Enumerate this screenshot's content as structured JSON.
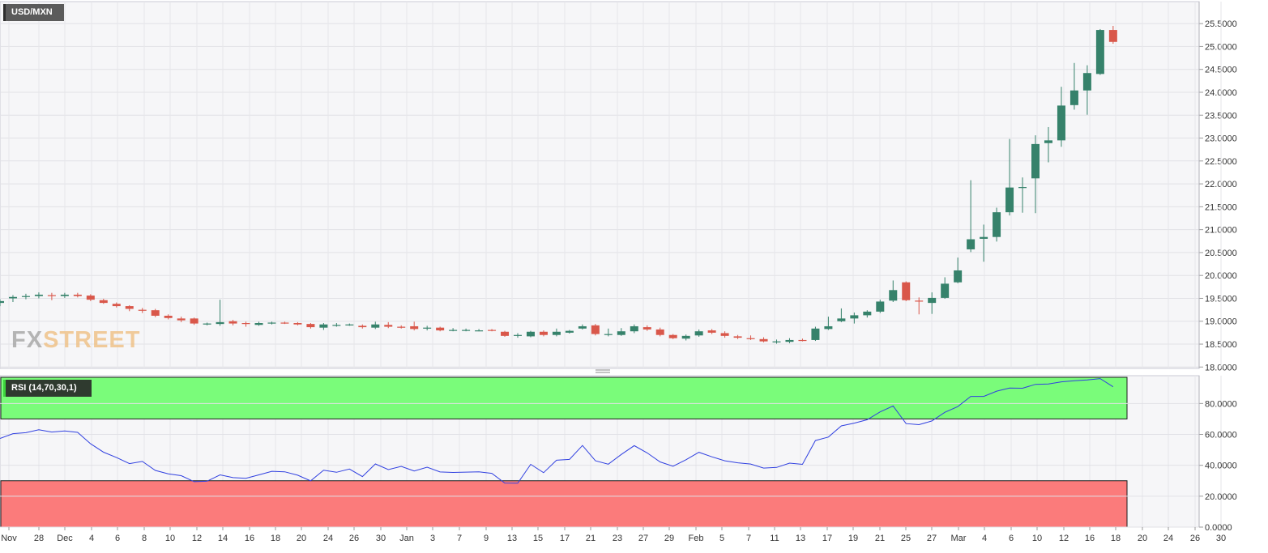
{
  "chart_data": [
    {
      "type": "candlestick",
      "title": "USD/MXN",
      "y_ticks": [
        "18.0000",
        "18.5000",
        "19.0000",
        "19.5000",
        "20.0000",
        "20.5000",
        "21.0000",
        "21.5000",
        "22.0000",
        "22.5000",
        "23.0000",
        "23.5000",
        "24.0000",
        "24.5000",
        "25.0000",
        "25.5000"
      ],
      "ylim": [
        17.97,
        25.98
      ],
      "x_ticks": [
        "Nov",
        "28",
        "Dec",
        "4",
        "6",
        "8",
        "10",
        "12",
        "14",
        "16",
        "18",
        "20",
        "24",
        "26",
        "30",
        "Jan",
        "3",
        "7",
        "9",
        "13",
        "15",
        "17",
        "21",
        "23",
        "27",
        "29",
        "Feb",
        "5",
        "7",
        "11",
        "13",
        "17",
        "19",
        "21",
        "25",
        "27",
        "Mar",
        "4",
        "6",
        "10",
        "12",
        "16",
        "18",
        "20",
        "24",
        "26",
        "30"
      ],
      "up_color": "#36826b",
      "down_color": "#d9574a",
      "candles": [
        {
          "o": 19.4,
          "h": 19.48,
          "l": 19.33,
          "c": 19.44
        },
        {
          "o": 19.5,
          "h": 19.57,
          "l": 19.42,
          "c": 19.53
        },
        {
          "o": 19.54,
          "h": 19.6,
          "l": 19.48,
          "c": 19.55
        },
        {
          "o": 19.55,
          "h": 19.63,
          "l": 19.5,
          "c": 19.58
        },
        {
          "o": 19.57,
          "h": 19.62,
          "l": 19.46,
          "c": 19.55
        },
        {
          "o": 19.55,
          "h": 19.62,
          "l": 19.51,
          "c": 19.58
        },
        {
          "o": 19.58,
          "h": 19.62,
          "l": 19.52,
          "c": 19.55
        },
        {
          "o": 19.56,
          "h": 19.59,
          "l": 19.44,
          "c": 19.47
        },
        {
          "o": 19.46,
          "h": 19.49,
          "l": 19.38,
          "c": 19.4
        },
        {
          "o": 19.38,
          "h": 19.41,
          "l": 19.3,
          "c": 19.33
        },
        {
          "o": 19.33,
          "h": 19.35,
          "l": 19.22,
          "c": 19.27
        },
        {
          "o": 19.25,
          "h": 19.29,
          "l": 19.18,
          "c": 19.23
        },
        {
          "o": 19.24,
          "h": 19.27,
          "l": 19.09,
          "c": 19.12
        },
        {
          "o": 19.12,
          "h": 19.15,
          "l": 19.04,
          "c": 19.07
        },
        {
          "o": 19.06,
          "h": 19.1,
          "l": 18.98,
          "c": 19.02
        },
        {
          "o": 19.06,
          "h": 19.08,
          "l": 18.92,
          "c": 18.95
        },
        {
          "o": 18.93,
          "h": 18.97,
          "l": 18.91,
          "c": 18.95
        },
        {
          "o": 18.94,
          "h": 19.47,
          "l": 18.9,
          "c": 18.98
        },
        {
          "o": 19.0,
          "h": 19.03,
          "l": 18.91,
          "c": 18.95
        },
        {
          "o": 18.96,
          "h": 18.99,
          "l": 18.88,
          "c": 18.94
        },
        {
          "o": 18.92,
          "h": 18.99,
          "l": 18.9,
          "c": 18.96
        },
        {
          "o": 18.96,
          "h": 18.99,
          "l": 18.93,
          "c": 18.97
        },
        {
          "o": 18.97,
          "h": 18.99,
          "l": 18.94,
          "c": 18.96
        },
        {
          "o": 18.96,
          "h": 18.98,
          "l": 18.91,
          "c": 18.93
        },
        {
          "o": 18.94,
          "h": 18.96,
          "l": 18.84,
          "c": 18.87
        },
        {
          "o": 18.86,
          "h": 18.96,
          "l": 18.81,
          "c": 18.93
        },
        {
          "o": 18.91,
          "h": 18.96,
          "l": 18.88,
          "c": 18.92
        },
        {
          "o": 18.92,
          "h": 18.95,
          "l": 18.9,
          "c": 18.93
        },
        {
          "o": 18.9,
          "h": 18.93,
          "l": 18.84,
          "c": 18.87
        },
        {
          "o": 18.86,
          "h": 18.99,
          "l": 18.83,
          "c": 18.93
        },
        {
          "o": 18.92,
          "h": 18.98,
          "l": 18.85,
          "c": 18.88
        },
        {
          "o": 18.88,
          "h": 18.91,
          "l": 18.84,
          "c": 18.86
        },
        {
          "o": 18.89,
          "h": 18.99,
          "l": 18.8,
          "c": 18.83
        },
        {
          "o": 18.84,
          "h": 18.9,
          "l": 18.8,
          "c": 18.86
        },
        {
          "o": 18.86,
          "h": 18.88,
          "l": 18.78,
          "c": 18.8
        },
        {
          "o": 18.8,
          "h": 18.85,
          "l": 18.78,
          "c": 18.81
        },
        {
          "o": 18.81,
          "h": 18.84,
          "l": 18.78,
          "c": 18.81
        },
        {
          "o": 18.8,
          "h": 18.83,
          "l": 18.78,
          "c": 18.8
        },
        {
          "o": 18.81,
          "h": 18.83,
          "l": 18.78,
          "c": 18.79
        },
        {
          "o": 18.77,
          "h": 18.79,
          "l": 18.66,
          "c": 18.68
        },
        {
          "o": 18.69,
          "h": 18.74,
          "l": 18.64,
          "c": 18.7
        },
        {
          "o": 18.67,
          "h": 18.79,
          "l": 18.65,
          "c": 18.77
        },
        {
          "o": 18.77,
          "h": 18.8,
          "l": 18.67,
          "c": 18.7
        },
        {
          "o": 18.7,
          "h": 18.84,
          "l": 18.67,
          "c": 18.77
        },
        {
          "o": 18.75,
          "h": 18.81,
          "l": 18.73,
          "c": 18.79
        },
        {
          "o": 18.84,
          "h": 18.93,
          "l": 18.82,
          "c": 18.89
        },
        {
          "o": 18.91,
          "h": 18.94,
          "l": 18.69,
          "c": 18.72
        },
        {
          "o": 18.7,
          "h": 18.84,
          "l": 18.67,
          "c": 18.72
        },
        {
          "o": 18.7,
          "h": 18.85,
          "l": 18.68,
          "c": 18.78
        },
        {
          "o": 18.78,
          "h": 18.93,
          "l": 18.74,
          "c": 18.89
        },
        {
          "o": 18.87,
          "h": 18.91,
          "l": 18.79,
          "c": 18.82
        },
        {
          "o": 18.82,
          "h": 18.86,
          "l": 18.67,
          "c": 18.7
        },
        {
          "o": 18.7,
          "h": 18.72,
          "l": 18.61,
          "c": 18.63
        },
        {
          "o": 18.62,
          "h": 18.71,
          "l": 18.58,
          "c": 18.68
        },
        {
          "o": 18.69,
          "h": 18.82,
          "l": 18.66,
          "c": 18.78
        },
        {
          "o": 18.8,
          "h": 18.83,
          "l": 18.72,
          "c": 18.75
        },
        {
          "o": 18.74,
          "h": 18.78,
          "l": 18.64,
          "c": 18.68
        },
        {
          "o": 18.67,
          "h": 18.7,
          "l": 18.61,
          "c": 18.64
        },
        {
          "o": 18.63,
          "h": 18.69,
          "l": 18.59,
          "c": 18.61
        },
        {
          "o": 18.61,
          "h": 18.65,
          "l": 18.54,
          "c": 18.56
        },
        {
          "o": 18.55,
          "h": 18.6,
          "l": 18.51,
          "c": 18.56
        },
        {
          "o": 18.55,
          "h": 18.63,
          "l": 18.52,
          "c": 18.59
        },
        {
          "o": 18.59,
          "h": 18.62,
          "l": 18.56,
          "c": 18.57
        },
        {
          "o": 18.59,
          "h": 18.88,
          "l": 18.57,
          "c": 18.84
        },
        {
          "o": 18.83,
          "h": 19.1,
          "l": 18.81,
          "c": 18.89
        },
        {
          "o": 19.0,
          "h": 19.28,
          "l": 18.98,
          "c": 19.06
        },
        {
          "o": 19.06,
          "h": 19.19,
          "l": 18.95,
          "c": 19.13
        },
        {
          "o": 19.13,
          "h": 19.24,
          "l": 19.08,
          "c": 19.21
        },
        {
          "o": 19.21,
          "h": 19.47,
          "l": 19.18,
          "c": 19.43
        },
        {
          "o": 19.45,
          "h": 19.89,
          "l": 19.42,
          "c": 19.68
        },
        {
          "o": 19.85,
          "h": 19.87,
          "l": 19.44,
          "c": 19.46
        },
        {
          "o": 19.45,
          "h": 19.52,
          "l": 19.15,
          "c": 19.43
        },
        {
          "o": 19.4,
          "h": 19.63,
          "l": 19.16,
          "c": 19.51
        },
        {
          "o": 19.51,
          "h": 19.96,
          "l": 19.49,
          "c": 19.82
        },
        {
          "o": 19.85,
          "h": 20.39,
          "l": 19.83,
          "c": 20.11
        },
        {
          "o": 20.57,
          "h": 22.08,
          "l": 20.51,
          "c": 20.79
        },
        {
          "o": 20.8,
          "h": 21.11,
          "l": 20.3,
          "c": 20.84
        },
        {
          "o": 20.84,
          "h": 21.48,
          "l": 20.74,
          "c": 21.38
        },
        {
          "o": 21.38,
          "h": 22.98,
          "l": 21.31,
          "c": 21.92
        },
        {
          "o": 21.91,
          "h": 22.14,
          "l": 21.37,
          "c": 21.93
        },
        {
          "o": 22.12,
          "h": 23.06,
          "l": 21.36,
          "c": 22.87
        },
        {
          "o": 22.89,
          "h": 23.24,
          "l": 22.47,
          "c": 22.95
        },
        {
          "o": 22.95,
          "h": 24.12,
          "l": 22.81,
          "c": 23.71
        },
        {
          "o": 23.72,
          "h": 24.64,
          "l": 23.62,
          "c": 24.04
        },
        {
          "o": 24.04,
          "h": 24.59,
          "l": 23.51,
          "c": 24.42
        },
        {
          "o": 24.4,
          "h": 25.38,
          "l": 24.38,
          "c": 25.36
        },
        {
          "o": 25.36,
          "h": 25.45,
          "l": 25.06,
          "c": 25.1
        }
      ]
    },
    {
      "type": "line",
      "title": "RSI (14,70,30,1)",
      "y_ticks": [
        "0.0000",
        "20.0000",
        "40.0000",
        "60.0000",
        "80.0000"
      ],
      "ylim": [
        0,
        98
      ],
      "overbought": 70,
      "oversold": 30,
      "overbought_color": "#7afc7a",
      "oversold_color": "#fb7b7b",
      "line_color": "#3040e0",
      "values": [
        57.4,
        60.5,
        61.1,
        63.0,
        61.5,
        62.2,
        61.3,
        53.9,
        48.5,
        45.0,
        41.1,
        42.5,
        36.7,
        34.5,
        33.3,
        29.4,
        29.7,
        33.8,
        32.0,
        31.6,
        33.8,
        36.1,
        35.8,
        33.6,
        29.9,
        36.8,
        35.5,
        37.6,
        32.7,
        40.9,
        37.2,
        39.3,
        36.3,
        38.8,
        35.7,
        35.4,
        35.6,
        35.8,
        34.8,
        28.5,
        28.4,
        40.6,
        35.2,
        43.3,
        43.8,
        52.8,
        42.9,
        40.7,
        47.0,
        52.7,
        48.0,
        42.2,
        39.4,
        43.6,
        48.4,
        45.5,
        42.9,
        41.6,
        40.8,
        38.2,
        38.6,
        41.4,
        40.6,
        56.0,
        58.3,
        65.5,
        67.3,
        69.5,
        74.6,
        78.4,
        67.0,
        66.3,
        68.7,
        74.3,
        78.0,
        84.6,
        84.6,
        88.0,
        90.0,
        89.9,
        92.4,
        92.6,
        94.0,
        94.7,
        95.3,
        96.1,
        90.8
      ]
    }
  ],
  "logo": {
    "fx": "FX",
    "street": "STREET"
  }
}
